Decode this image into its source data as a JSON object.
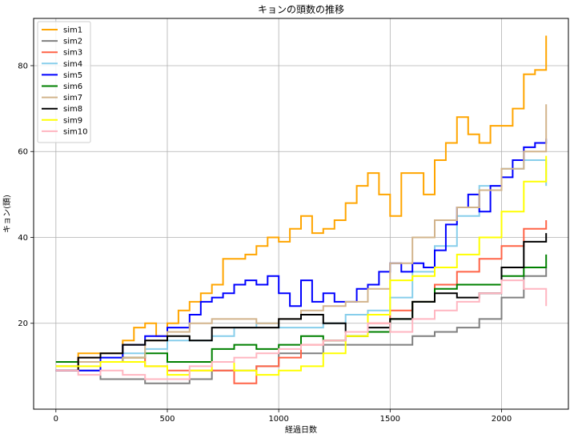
{
  "chart_data": {
    "type": "line",
    "title": "キョンの頭数の推移",
    "xlabel": "経過日数",
    "ylabel": "キョン(頭)",
    "xlim": [
      -100,
      2300
    ],
    "ylim": [
      0,
      91
    ],
    "xticks": [
      0,
      500,
      1000,
      1500,
      2000
    ],
    "yticks": [
      20,
      40,
      60,
      80
    ],
    "grid": true,
    "legend_position": "top-left",
    "series": [
      {
        "name": "sim1",
        "color": "#ffa500",
        "x": [
          0,
          100,
          200,
          300,
          350,
          400,
          450,
          500,
          550,
          600,
          650,
          700,
          750,
          800,
          850,
          900,
          950,
          1000,
          1050,
          1100,
          1150,
          1200,
          1250,
          1300,
          1350,
          1400,
          1450,
          1500,
          1550,
          1600,
          1650,
          1700,
          1750,
          1800,
          1850,
          1900,
          1950,
          2000,
          2050,
          2100,
          2150,
          2200
        ],
        "y": [
          10,
          13,
          13,
          16,
          19,
          20,
          17,
          20,
          23,
          25,
          27,
          29,
          35,
          35,
          36,
          38,
          40,
          39,
          42,
          45,
          41,
          42,
          44,
          48,
          52,
          55,
          50,
          45,
          55,
          55,
          50,
          58,
          62,
          68,
          64,
          62,
          66,
          66,
          70,
          78,
          79,
          87
        ]
      },
      {
        "name": "sim2",
        "color": "#808080",
        "x": [
          0,
          100,
          200,
          300,
          400,
          500,
          600,
          700,
          800,
          900,
          1000,
          1100,
          1200,
          1300,
          1400,
          1500,
          1600,
          1700,
          1800,
          1900,
          2000,
          2100,
          2200
        ],
        "y": [
          9,
          9,
          7,
          7,
          6,
          6,
          7,
          9,
          9,
          10,
          13,
          13,
          15,
          15,
          15,
          15,
          17,
          18,
          19,
          21,
          26,
          31,
          33
        ]
      },
      {
        "name": "sim3",
        "color": "#ff6347",
        "x": [
          0,
          100,
          200,
          300,
          400,
          500,
          600,
          700,
          800,
          900,
          1000,
          1100,
          1200,
          1300,
          1400,
          1500,
          1600,
          1700,
          1800,
          1900,
          2000,
          2100,
          2200
        ],
        "y": [
          9,
          12,
          11,
          12,
          10,
          9,
          9,
          9,
          6,
          10,
          12,
          15,
          16,
          17,
          20,
          23,
          25,
          29,
          32,
          35,
          38,
          42,
          44
        ]
      },
      {
        "name": "sim4",
        "color": "#87ceeb",
        "x": [
          0,
          100,
          200,
          300,
          400,
          500,
          600,
          700,
          800,
          900,
          1000,
          1100,
          1200,
          1300,
          1400,
          1500,
          1600,
          1700,
          1800,
          1900,
          2000,
          2100,
          2200
        ],
        "y": [
          10,
          11,
          12,
          13,
          14,
          16,
          16,
          17,
          19,
          20,
          19,
          19,
          20,
          22,
          23,
          26,
          32,
          38,
          45,
          52,
          56,
          58,
          52
        ]
      },
      {
        "name": "sim5",
        "color": "#0000ff",
        "x": [
          0,
          100,
          200,
          300,
          400,
          500,
          550,
          600,
          650,
          700,
          750,
          800,
          850,
          900,
          950,
          1000,
          1050,
          1100,
          1150,
          1200,
          1250,
          1300,
          1350,
          1400,
          1450,
          1500,
          1550,
          1600,
          1650,
          1700,
          1750,
          1800,
          1850,
          1900,
          1950,
          2000,
          2050,
          2100,
          2150,
          2200
        ],
        "y": [
          9,
          9,
          12,
          15,
          17,
          19,
          19,
          22,
          25,
          26,
          27,
          29,
          30,
          29,
          31,
          27,
          24,
          30,
          25,
          27,
          25,
          25,
          28,
          29,
          32,
          34,
          32,
          34,
          33,
          37,
          43,
          47,
          50,
          46,
          52,
          54,
          58,
          61,
          62,
          63
        ]
      },
      {
        "name": "sim6",
        "color": "#008000",
        "x": [
          0,
          100,
          200,
          300,
          400,
          500,
          600,
          700,
          800,
          900,
          1000,
          1100,
          1200,
          1300,
          1400,
          1500,
          1600,
          1700,
          1800,
          1900,
          2000,
          2100,
          2200
        ],
        "y": [
          11,
          11,
          11,
          12,
          13,
          11,
          11,
          14,
          15,
          14,
          15,
          17,
          16,
          17,
          18,
          21,
          25,
          28,
          29,
          29,
          31,
          33,
          36
        ]
      },
      {
        "name": "sim7",
        "color": "#d2b48c",
        "x": [
          0,
          100,
          200,
          300,
          400,
          500,
          600,
          700,
          800,
          900,
          1000,
          1100,
          1200,
          1300,
          1400,
          1500,
          1600,
          1700,
          1800,
          1900,
          2000,
          2100,
          2200
        ],
        "y": [
          10,
          11,
          11,
          12,
          16,
          18,
          20,
          21,
          21,
          20,
          21,
          23,
          24,
          25,
          28,
          34,
          40,
          44,
          47,
          51,
          56,
          60,
          71
        ]
      },
      {
        "name": "sim8",
        "color": "#000000",
        "x": [
          0,
          100,
          200,
          300,
          400,
          500,
          600,
          700,
          800,
          900,
          1000,
          1100,
          1200,
          1300,
          1400,
          1500,
          1600,
          1700,
          1800,
          1900,
          2000,
          2100,
          2200
        ],
        "y": [
          9,
          12,
          13,
          15,
          16,
          17,
          16,
          19,
          19,
          19,
          21,
          22,
          20,
          18,
          19,
          21,
          25,
          27,
          26,
          27,
          33,
          39,
          41
        ]
      },
      {
        "name": "sim9",
        "color": "#ffff00",
        "x": [
          0,
          100,
          200,
          300,
          400,
          500,
          600,
          700,
          800,
          900,
          1000,
          1100,
          1200,
          1300,
          1400,
          1500,
          1600,
          1700,
          1800,
          1900,
          2000,
          2100,
          2200
        ],
        "y": [
          10,
          10,
          11,
          11,
          10,
          8,
          9,
          11,
          9,
          8,
          9,
          10,
          13,
          17,
          22,
          30,
          31,
          33,
          36,
          40,
          46,
          53,
          59
        ]
      },
      {
        "name": "sim10",
        "color": "#ffb6c1",
        "x": [
          0,
          100,
          200,
          300,
          400,
          500,
          600,
          700,
          800,
          900,
          1000,
          1100,
          1200,
          1300,
          1400,
          1500,
          1600,
          1700,
          1800,
          1900,
          2000,
          2100,
          2200
        ],
        "y": [
          9,
          8,
          9,
          8,
          7,
          7,
          10,
          11,
          12,
          13,
          14,
          15,
          16,
          18,
          20,
          18,
          21,
          23,
          25,
          27,
          30,
          28,
          24
        ]
      }
    ]
  }
}
